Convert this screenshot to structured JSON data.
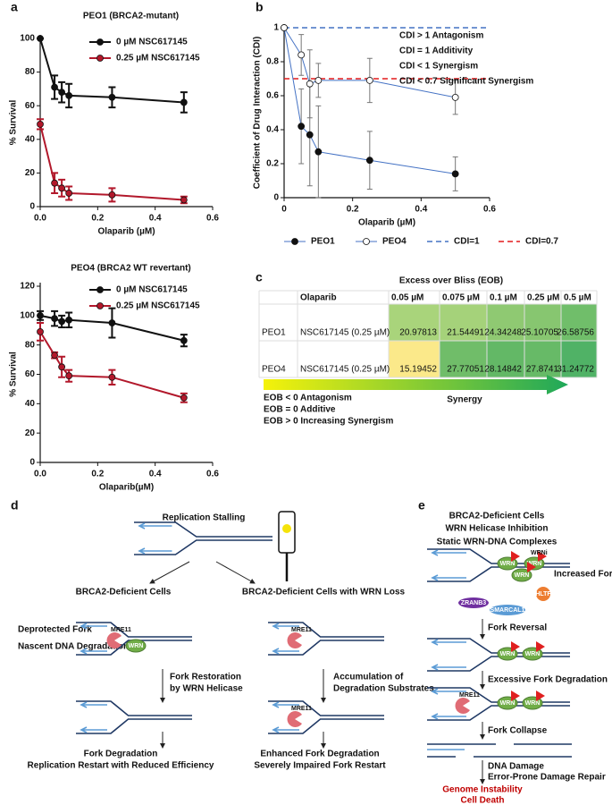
{
  "panel_labels": [
    "a",
    "b",
    "c",
    "d",
    "e"
  ],
  "chart_data": [
    {
      "type": "line",
      "title": "PEO1 (BRCA2-mutant)",
      "xlabel": "Olaparib (µM)",
      "ylabel": "% Survival",
      "x": [
        0,
        0.05,
        0.075,
        0.1,
        0.25,
        0.5
      ],
      "series": [
        {
          "name": "0 µM NSC617145",
          "color": "#111111",
          "marker_fill": "#111111",
          "values": [
            100,
            71,
            68,
            66,
            65,
            62
          ],
          "errors": [
            0,
            7,
            6,
            7,
            6,
            6
          ]
        },
        {
          "name": "0.25 µM NSC617145",
          "color": "#b2182b",
          "marker_fill": "#b2182b",
          "values": [
            49,
            14,
            11,
            8,
            7,
            4
          ],
          "errors": [
            3,
            6,
            5,
            4,
            4,
            2
          ]
        }
      ],
      "xlim": [
        0,
        0.6
      ],
      "xticks": [
        {
          "value": 0,
          "label": "0.0"
        },
        0.2,
        0.4,
        0.6
      ],
      "ylim": [
        0,
        100
      ],
      "yticks": [
        0,
        20,
        40,
        60,
        80,
        100
      ],
      "legend": "upper right"
    },
    {
      "type": "line",
      "title": "PEO4 (BRCA2 WT revertant)",
      "xlabel": "Olaparib(µM)",
      "ylabel": "% Survival",
      "x": [
        0,
        0.05,
        0.075,
        0.1,
        0.25,
        0.5
      ],
      "series": [
        {
          "name": "0 µM NSC617145",
          "color": "#111111",
          "marker_fill": "#111111",
          "values": [
            100,
            98,
            96,
            97,
            95,
            83
          ],
          "errors": [
            3,
            5,
            4,
            5,
            10,
            4
          ]
        },
        {
          "name": "0.25 µM NSC617145",
          "color": "#b2182b",
          "marker_fill": "#b2182b",
          "values": [
            89,
            73,
            65,
            59,
            58,
            44
          ],
          "errors": [
            6,
            2,
            7,
            4,
            5,
            3
          ]
        }
      ],
      "xlim": [
        0,
        0.6
      ],
      "xticks": [
        {
          "value": 0,
          "label": "0.0"
        },
        0.2,
        0.4,
        0.6
      ],
      "ylim": [
        0,
        120
      ],
      "yticks": [
        0,
        20,
        40,
        60,
        80,
        100,
        120
      ],
      "legend": "upper right"
    },
    {
      "type": "line",
      "xlabel": "Olaparib (µM)",
      "ylabel": "Coefficient of Drug Interaction (CDI)",
      "x": [
        0,
        0.05,
        0.075,
        0.1,
        0.25,
        0.5
      ],
      "series": [
        {
          "name": "PEO1",
          "color": "#4472c4",
          "marker_fill": "#111111",
          "values": [
            1,
            0.42,
            0.37,
            0.27,
            0.22,
            0.14
          ],
          "errors": [
            0,
            0.22,
            0.3,
            0.27,
            0.17,
            0.1
          ]
        },
        {
          "name": "PEO4",
          "color": "#4472c4",
          "marker_fill": "#ffffff",
          "values": [
            1,
            0.84,
            0.67,
            0.69,
            0.69,
            0.59
          ],
          "errors": [
            0,
            0.12,
            0.2,
            0.1,
            0.13,
            0.1
          ]
        }
      ],
      "ref_lines": [
        {
          "name": "CDI=1",
          "value": 1,
          "color": "#4472c4"
        },
        {
          "name": "CDI=0.7",
          "value": 0.7,
          "color": "#e41a1c"
        }
      ],
      "annotations": [
        "CDI > 1 Antagonism",
        "CDI = 1 Additivity",
        "CDI < 1 Synergism",
        "CDI < 0.7 Significant Synergism"
      ],
      "xlim": [
        0,
        0.6
      ],
      "xticks": [
        0,
        0.2,
        0.4,
        0.6
      ],
      "ylim": [
        0,
        1
      ],
      "yticks": [
        0,
        0.2,
        0.4,
        0.6,
        0.8,
        1
      ],
      "legend": "bottom"
    }
  ],
  "eob_table": {
    "title": "Excess over Bliss (EOB)",
    "columns": [
      "Olaparib",
      "0.05 µM",
      "0.075 µM",
      "0.1 µM",
      "0.25 µM",
      "0.5 µM"
    ],
    "rows": [
      [
        "PEO1",
        "NSC617145 (0.25 µM)",
        20.97813,
        21.54491,
        24.34248,
        25.10705,
        26.58756
      ],
      [
        "PEO4",
        "NSC617145 (0.25 µM)",
        15.19452,
        27.77051,
        28.14842,
        27.8741,
        31.24772
      ]
    ],
    "cell_colors": [
      [
        "#a9d47b",
        "#a5d27a",
        "#8fc972",
        "#87c670",
        "#70be6a"
      ],
      [
        "#fbe98a",
        "#70bd69",
        "#63b866",
        "#67ba67",
        "#50b266"
      ]
    ],
    "legend": [
      "EOB < 0 Antagonism",
      "EOB = 0 Additive",
      "EOB > 0 Increasing Synergism"
    ],
    "arrow_label": "Synergy"
  },
  "diagram_d": {
    "stall": "Replication Stalling",
    "left_title": "BRCA2-Deficient Cells",
    "right_title": "BRCA2-Deficient Cells with WRN Loss",
    "deprotected": "Deprotected Fork",
    "nascent": "Nascent DNA Degradation",
    "mre11": "MRE11",
    "wrn": "WRN",
    "left_step": [
      "Fork Restoration",
      "by WRN Helicase"
    ],
    "left_outcome": [
      "Fork Degradation",
      "Replication Restart with Reduced Efficiency"
    ],
    "right_step": [
      "Accumulation of",
      "Degradation Substrates"
    ],
    "right_outcome": [
      "Enhanced Fork Degradation",
      "Severely Impaired Fork Restart"
    ]
  },
  "diagram_e": {
    "title": [
      "BRCA2-Deficient Cells",
      "WRN Helicase Inhibition"
    ],
    "static": "Static WRN-DNA Complexes",
    "wrni": "WRNi",
    "stalling": "Increased Fork Stalling",
    "wrn": "WRN",
    "hltf": "HLTF",
    "zranb3": "ZRANB3",
    "smarcal1": "SMARCAL1",
    "mre11": "MRE11",
    "steps": [
      "Fork Reversal",
      "Excessive Fork Degradation",
      "Fork Collapse"
    ],
    "damage": [
      "DNA Damage",
      "Error-Prone Damage Repair"
    ],
    "outcome": [
      "Genome Instability",
      "Cell Death"
    ]
  }
}
